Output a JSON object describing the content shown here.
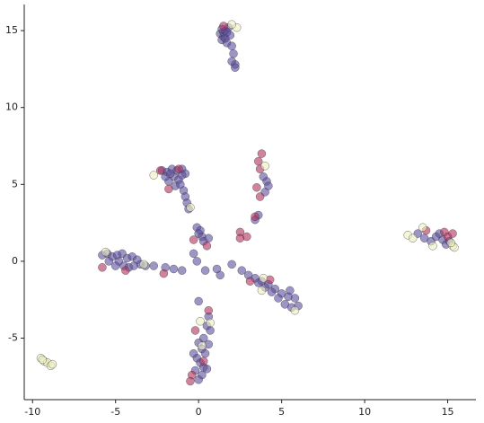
{
  "chart_data": {
    "type": "scatter",
    "xlim": [
      -10.5,
      16.7
    ],
    "ylim": [
      -9.0,
      16.7
    ],
    "xticks": [
      -10,
      -5,
      0,
      5,
      10,
      15
    ],
    "yticks": [
      -5,
      0,
      5,
      10,
      15
    ],
    "series": [
      {
        "color": "#5b4f9e",
        "x": [
          1.3,
          1.5,
          1.6,
          1.4,
          1.7,
          1.9,
          1.8,
          2.0,
          1.5,
          1.6,
          2.1,
          2.2,
          2.2,
          2.0,
          1.7,
          1.4,
          -2.2,
          -1.9,
          -1.6,
          -1.3,
          -1.0,
          -0.8,
          -1.5,
          -1.2,
          -1.8,
          -2.0,
          -1.4,
          -1.1,
          -0.9,
          -0.8,
          -0.7,
          -0.6,
          -1.7,
          -1.0,
          4.1,
          4.2,
          3.9,
          3.6,
          3.4,
          4.0,
          -0.1,
          0.1,
          0.2,
          0.3,
          0.0,
          0.6,
          -0.3,
          -0.1,
          0.4,
          1.1,
          2.0,
          0.0,
          1.3,
          -5.8,
          -5.5,
          -5.2,
          -4.9,
          -4.6,
          -4.3,
          -4.0,
          -3.7,
          -3.5,
          -3.2,
          -4.8,
          -5.0,
          -4.5,
          -4.2,
          -5.4,
          -3.9,
          -2.0,
          -1.5,
          -1.0,
          -2.7,
          2.6,
          3.0,
          3.4,
          3.8,
          4.2,
          4.6,
          5.0,
          5.4,
          5.8,
          4.4,
          4.8,
          5.2,
          5.6,
          4.0,
          5.5,
          6.0,
          3.6,
          0.6,
          0.5,
          0.7,
          0.3,
          0.0,
          0.2,
          0.4,
          -0.1,
          0.1,
          0.3,
          -0.2,
          0.2,
          0.0,
          0.5,
          0.6,
          -0.3,
          13.2,
          13.6,
          14.0,
          14.3,
          14.7,
          14.9,
          15.1,
          14.5
        ],
        "values": [
          14.8,
          14.6,
          15.0,
          14.4,
          14.2,
          14.7,
          15.2,
          14.0,
          14.9,
          14.5,
          13.5,
          12.8,
          12.6,
          13.0,
          14.9,
          15.1,
          5.9,
          5.8,
          6.0,
          5.9,
          6.0,
          5.7,
          5.5,
          5.3,
          5.2,
          5.5,
          4.9,
          5.0,
          4.6,
          4.2,
          3.8,
          3.4,
          5.7,
          5.6,
          5.2,
          4.9,
          5.5,
          3.0,
          2.7,
          4.5,
          2.2,
          2.0,
          1.6,
          1.3,
          1.8,
          1.5,
          0.5,
          0.0,
          -0.6,
          -0.5,
          -0.2,
          -2.6,
          -0.9,
          0.4,
          0.5,
          0.3,
          0.4,
          0.5,
          0.2,
          0.3,
          0.1,
          -0.2,
          -0.3,
          0.0,
          -0.3,
          -0.3,
          -0.4,
          0.0,
          -0.3,
          -0.4,
          -0.5,
          -0.6,
          -0.3,
          -0.6,
          -0.9,
          -1.1,
          -1.3,
          -1.5,
          -1.8,
          -2.1,
          -2.3,
          -2.4,
          -2.0,
          -2.4,
          -2.8,
          -3.0,
          -1.7,
          -1.9,
          -2.9,
          -1.4,
          -3.6,
          -4.2,
          -4.5,
          -5.0,
          -5.3,
          -5.7,
          -6.0,
          -6.3,
          -6.6,
          -6.9,
          -7.1,
          -7.4,
          -7.7,
          -7.0,
          -5.4,
          -6.0,
          1.8,
          1.5,
          1.3,
          1.6,
          1.4,
          1.1,
          1.3,
          1.8
        ]
      },
      {
        "color": "#b0305c",
        "x": [
          3.8,
          3.6,
          3.7,
          3.5,
          3.7,
          3.4,
          2.9,
          2.5,
          0.5,
          -0.3,
          -1.8,
          -2.3,
          -1.2,
          -5.8,
          -4.4,
          -2.1,
          3.1,
          4.3,
          0.6,
          -0.2,
          0.3,
          -0.4,
          -0.5,
          13.7,
          14.8,
          15.0,
          15.3,
          1.5,
          2.5
        ],
        "values": [
          7.0,
          6.5,
          6.0,
          4.8,
          4.2,
          2.9,
          1.6,
          1.9,
          1.0,
          1.4,
          4.7,
          5.9,
          6.0,
          -0.4,
          -0.6,
          -0.8,
          -1.3,
          -1.2,
          -3.2,
          -4.5,
          -6.5,
          -7.4,
          -7.8,
          2.0,
          1.9,
          1.6,
          1.8,
          15.3,
          1.5
        ]
      },
      {
        "color": "#eef0c0",
        "x": [
          -9.5,
          -9.3,
          -9.1,
          -8.9,
          -8.8,
          -9.4,
          15.3,
          15.4,
          15.2,
          12.6,
          12.9,
          13.5,
          14.1,
          -2.7,
          -5.6,
          -3.3,
          3.8,
          5.8,
          0.7,
          0.2,
          2.3,
          2.0,
          4.0,
          -0.5,
          3.9,
          0.1
        ],
        "values": [
          -6.3,
          -6.5,
          -6.6,
          -6.8,
          -6.7,
          -6.4,
          1.0,
          0.9,
          1.2,
          1.7,
          1.5,
          2.2,
          1.0,
          5.6,
          0.6,
          -0.2,
          -1.9,
          -3.2,
          -4.0,
          -5.5,
          15.2,
          15.4,
          6.2,
          3.5,
          -1.1,
          -3.9
        ]
      }
    ]
  }
}
